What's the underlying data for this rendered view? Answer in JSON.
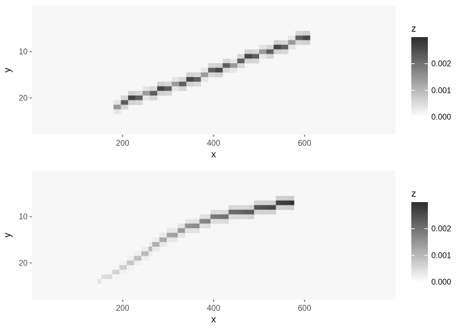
{
  "chart_data": [
    {
      "type": "heatmap",
      "xlabel": "x",
      "ylabel": "y",
      "xlim": [
        0,
        800
      ],
      "ylim": [
        28,
        0
      ],
      "y_reversed": true,
      "x_ticks": [
        200,
        400,
        600
      ],
      "y_ticks": [
        10,
        20
      ],
      "grid": false,
      "panel_background": "#f7f7f7",
      "legend": {
        "title": "z",
        "placement": "right",
        "min": 0,
        "max": 0.003,
        "ticks": [
          0.0,
          0.001,
          0.002
        ],
        "tick_labels": [
          "0.000",
          "0.001",
          "0.002"
        ],
        "low_color": "#ffffff",
        "high_color": "#2b2b2b"
      },
      "path": [
        [
          180,
          21.8
        ],
        [
          250,
          19.5
        ],
        [
          320,
          17.2
        ],
        [
          390,
          14.5
        ],
        [
          460,
          12.0
        ],
        [
          530,
          9.5
        ],
        [
          610,
          6.5
        ]
      ],
      "tile_width": 16,
      "z_peak": 0.0026
    },
    {
      "type": "heatmap",
      "xlabel": "x",
      "ylabel": "y",
      "xlim": [
        0,
        800
      ],
      "ylim": [
        28,
        0
      ],
      "y_reversed": true,
      "x_ticks": [
        200,
        400,
        600
      ],
      "y_ticks": [
        10,
        20
      ],
      "grid": false,
      "panel_background": "#f7f7f7",
      "legend": {
        "title": "z",
        "placement": "right",
        "min": 0,
        "max": 0.003,
        "ticks": [
          0.0,
          0.001,
          0.002
        ],
        "tick_labels": [
          "0.000",
          "0.001",
          "0.002"
        ],
        "low_color": "#ffffff",
        "high_color": "#2b2b2b"
      },
      "path": [
        [
          145,
          23.7
        ],
        [
          185,
          22.0
        ],
        [
          220,
          20.0
        ],
        [
          260,
          17.0
        ],
        [
          300,
          14.5
        ],
        [
          340,
          12.5
        ],
        [
          380,
          11.0
        ],
        [
          420,
          9.8
        ],
        [
          460,
          9.0
        ],
        [
          500,
          8.3
        ],
        [
          540,
          7.4
        ],
        [
          575,
          6.6
        ]
      ],
      "tile_width": 8,
      "z_start": 0.0004,
      "z_end": 0.0029
    }
  ]
}
